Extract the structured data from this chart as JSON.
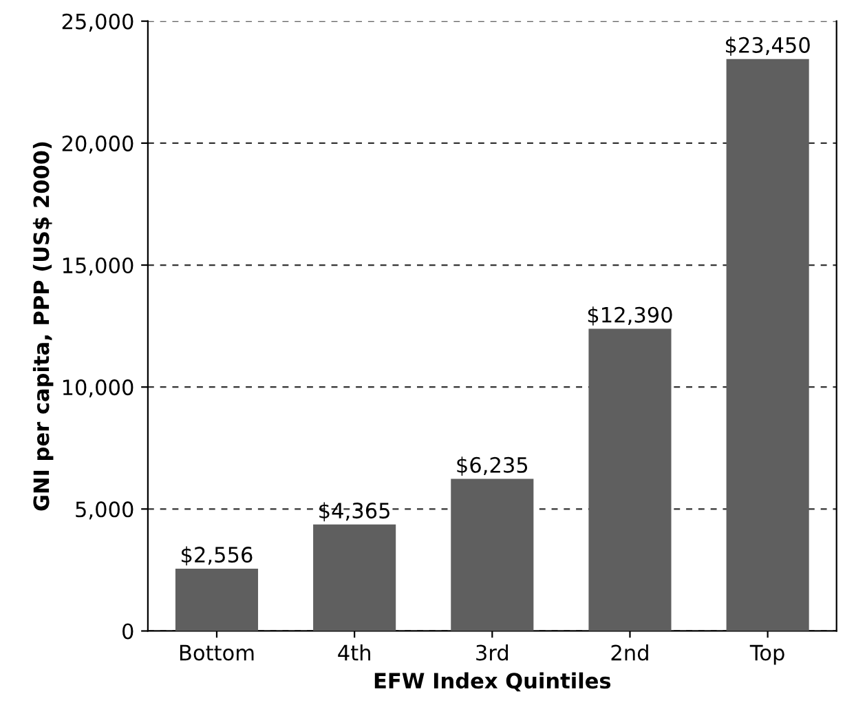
{
  "chart_data": {
    "type": "bar",
    "xlabel": "EFW Index Quintiles",
    "ylabel": "GNI per capita, PPP (US$ 2000)",
    "categories": [
      "Bottom",
      "4th",
      "3rd",
      "2nd",
      "Top"
    ],
    "values": [
      2556,
      4365,
      6235,
      12390,
      23450
    ],
    "value_labels": [
      "$2,556",
      "$4,365",
      "$6,235",
      "$12,390",
      "$23,450"
    ],
    "color": "#5f5f5f",
    "ylim": [
      0,
      25000
    ],
    "yticks": [
      {
        "value": 0,
        "label": "0"
      },
      {
        "value": 5000,
        "label": "5,000"
      },
      {
        "value": 10000,
        "label": "10,000"
      },
      {
        "value": 15000,
        "label": "15,000"
      },
      {
        "value": 20000,
        "label": "20,000"
      },
      {
        "value": 25000,
        "label": "25,000"
      }
    ],
    "grid": "y",
    "legend": false
  }
}
